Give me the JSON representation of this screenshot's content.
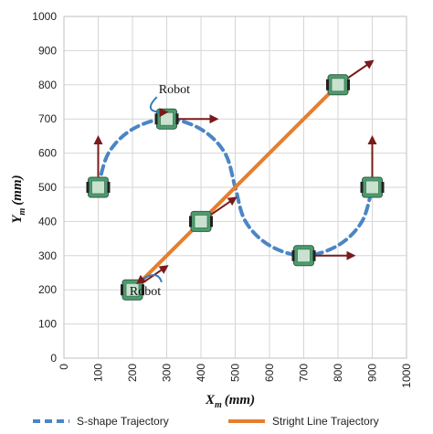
{
  "chart_data": {
    "type": "line",
    "xlabel_main": "X",
    "xlabel_sub": "m",
    "xlabel_unit": "(mm)",
    "ylabel_main": "Y",
    "ylabel_sub": "m",
    "ylabel_unit": "(mm)",
    "xlim": [
      0,
      1000
    ],
    "ylim": [
      0,
      1000
    ],
    "xticks": [
      0,
      100,
      200,
      300,
      400,
      500,
      600,
      700,
      800,
      900,
      1000
    ],
    "yticks": [
      0,
      100,
      200,
      300,
      400,
      500,
      600,
      700,
      800,
      900,
      1000
    ],
    "grid": true,
    "legend_position": "bottom",
    "series": [
      {
        "name": "S-shape Trajectory",
        "style": "dashed",
        "color": "#4a86c5",
        "x": [
          100,
          130,
          200,
          300,
          400,
          470,
          500,
          530,
          600,
          700,
          800,
          870,
          900
        ],
        "y": [
          500,
          600,
          670,
          700,
          670,
          600,
          500,
          400,
          330,
          300,
          330,
          400,
          500
        ]
      },
      {
        "name": "Stright Line Trajectory",
        "style": "solid",
        "color": "#e67e2e",
        "x": [
          200,
          800
        ],
        "y": [
          200,
          800
        ]
      }
    ],
    "robots": [
      {
        "x": 100,
        "y": 500,
        "heading": "up"
      },
      {
        "x": 300,
        "y": 700,
        "heading": "right"
      },
      {
        "x": 900,
        "y": 500,
        "heading": "up"
      },
      {
        "x": 700,
        "y": 300,
        "heading": "right"
      },
      {
        "x": 200,
        "y": 200,
        "heading": "diagonal"
      },
      {
        "x": 400,
        "y": 400,
        "heading": "diagonal"
      },
      {
        "x": 800,
        "y": 800,
        "heading": "diagonal"
      }
    ],
    "annotations": [
      {
        "text": "Robot",
        "x": 330,
        "y": 775
      },
      {
        "text": "Robot",
        "x": 245,
        "y": 185
      }
    ],
    "colors": {
      "s_shape": "#4a86c5",
      "straight_line": "#e67e2e",
      "arrow": "#7a1a1a",
      "grid": "#d6d6d6",
      "robot": "#4f9a6e"
    }
  }
}
